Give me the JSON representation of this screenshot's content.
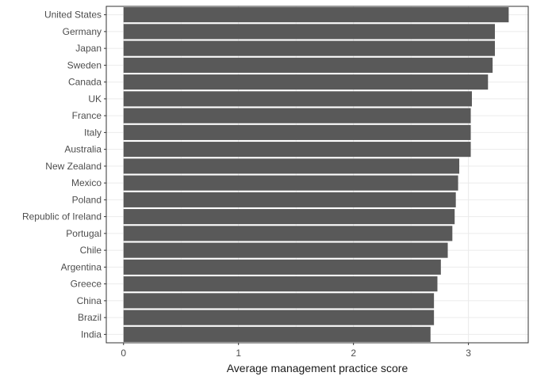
{
  "chart_data": {
    "type": "bar",
    "orientation": "horizontal",
    "categories": [
      "United States",
      "Germany",
      "Japan",
      "Sweden",
      "Canada",
      "UK",
      "France",
      "Italy",
      "Australia",
      "New Zealand",
      "Mexico",
      "Poland",
      "Republic of Ireland",
      "Portugal",
      "Chile",
      "Argentina",
      "Greece",
      "China",
      "Brazil",
      "India"
    ],
    "values": [
      3.35,
      3.23,
      3.23,
      3.21,
      3.17,
      3.03,
      3.02,
      3.02,
      3.02,
      2.92,
      2.91,
      2.89,
      2.88,
      2.86,
      2.82,
      2.76,
      2.73,
      2.7,
      2.7,
      2.67
    ],
    "xlabel": "Average management practice score",
    "ylabel": "",
    "xlim": [
      -0.15,
      3.52
    ],
    "xticks": [
      0,
      1,
      2,
      3
    ],
    "grid": true,
    "legend": "none",
    "colors": {
      "bar": "#595959",
      "grid": "#ebebeb",
      "panel_border": "#333333",
      "background": "#ffffff"
    }
  }
}
